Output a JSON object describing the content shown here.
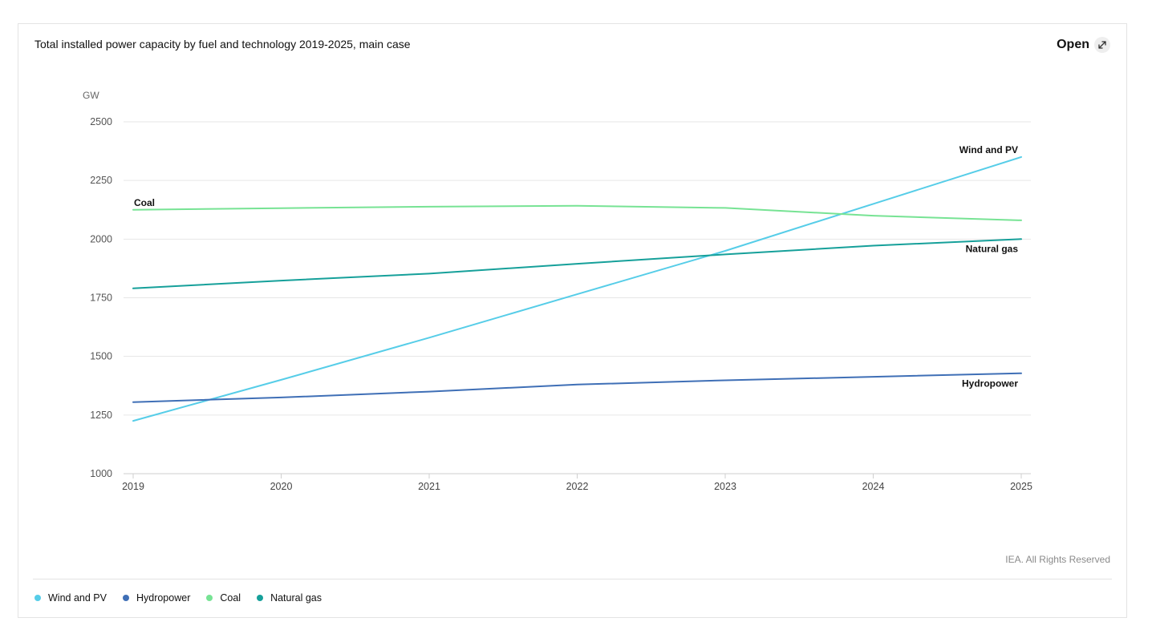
{
  "card": {
    "title": "Total installed power capacity by fuel and technology 2019-2025, main case",
    "open_label": "Open",
    "open_icon": "expand-arrows-icon",
    "copyright": "IEA. All Rights Reserved"
  },
  "chart_data": {
    "type": "line",
    "title": "Total installed power capacity by fuel and technology 2019-2025, main case",
    "ylabel": "GW",
    "xlabel": "",
    "x": [
      2019,
      2020,
      2021,
      2022,
      2023,
      2024,
      2025
    ],
    "ylim": [
      1000,
      2500
    ],
    "yticks": [
      1000,
      1250,
      1500,
      1750,
      2000,
      2250,
      2500
    ],
    "grid": true,
    "legend_position": "bottom-left",
    "series": [
      {
        "name": "Wind and PV",
        "color": "#56cde8",
        "values": [
          1225,
          1400,
          1580,
          1765,
          1950,
          2150,
          2350
        ],
        "label_position": "end"
      },
      {
        "name": "Hydropower",
        "color": "#3f6fb6",
        "values": [
          1305,
          1325,
          1350,
          1380,
          1398,
          1413,
          1428
        ],
        "label_position": "end"
      },
      {
        "name": "Coal",
        "color": "#77e394",
        "values": [
          2125,
          2132,
          2138,
          2142,
          2133,
          2100,
          2080
        ],
        "label_position": "start"
      },
      {
        "name": "Natural gas",
        "color": "#16a09a",
        "values": [
          1790,
          1823,
          1853,
          1895,
          1935,
          1972,
          2000
        ],
        "label_position": "end"
      }
    ]
  }
}
